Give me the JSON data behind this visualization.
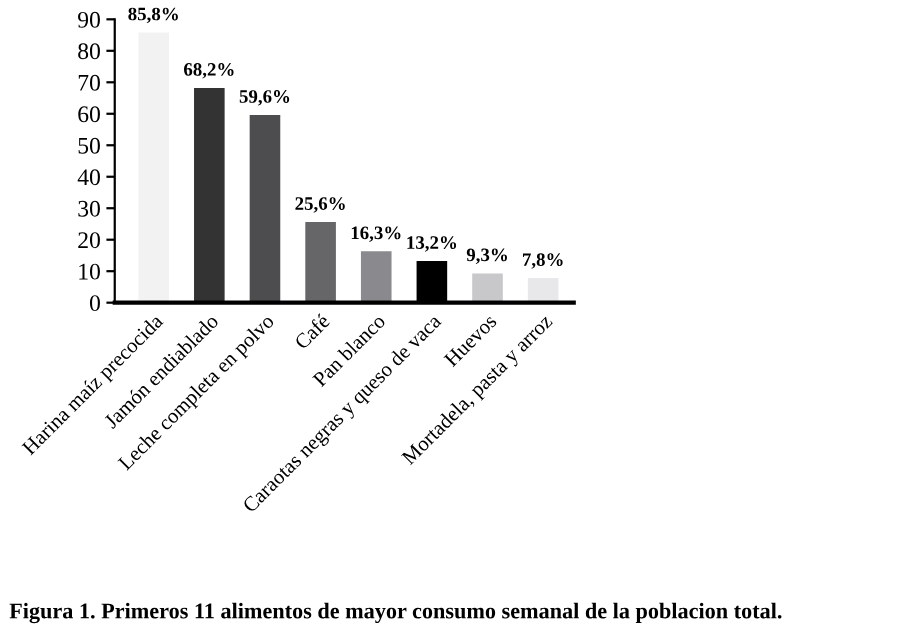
{
  "chart_data": {
    "type": "bar",
    "categories": [
      "Harina maíz precocida",
      "Jamón endiablado",
      "Leche completa en polvo",
      "Café",
      "Pan blanco",
      "Caraotas negras y queso de vaca",
      "Huevos",
      "Mortadela, pasta y arroz"
    ],
    "values": [
      85.8,
      68.2,
      59.6,
      25.6,
      16.3,
      13.2,
      9.3,
      7.8
    ],
    "colors": [
      "#f2f2f2",
      "#333333",
      "#4d4d4f",
      "#666668",
      "#8a8a8e",
      "#000000",
      "#c8c8ca",
      "#e8e8ea"
    ],
    "value_labels": [
      "85,8%",
      "68,2%",
      "59,6%",
      "25,6%",
      "16,3%",
      "13,2%",
      "9,3%",
      "7,8%"
    ],
    "ylim": [
      0,
      90
    ],
    "yticks": [
      0,
      10,
      20,
      30,
      40,
      50,
      60,
      70,
      80,
      90
    ],
    "grid": false,
    "legend": false,
    "annotations": [
      "Figura 1. Primeros 11 alimentos de mayor consumo semanal de la poblacion total."
    ]
  }
}
